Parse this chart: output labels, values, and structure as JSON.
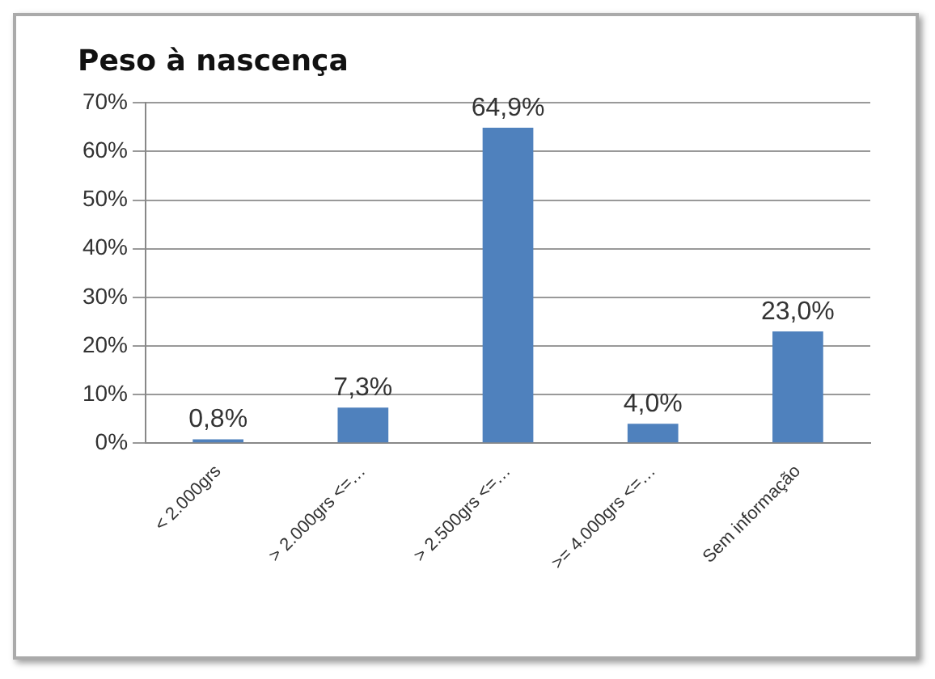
{
  "chart_data": {
    "type": "bar",
    "title": "Peso à nascença",
    "categories": [
      "< 2.000grs",
      "> 2.000grs <=…",
      "> 2.500grs <=…",
      ">= 4.000grs <=…",
      "Sem informação"
    ],
    "values": [
      0.8,
      7.3,
      64.9,
      4.0,
      23.0
    ],
    "value_labels": [
      "0,8%",
      "7,3%",
      "64,9%",
      "4,0%",
      "23,0%"
    ],
    "color": "#4f81bd",
    "ylim": [
      0,
      70
    ],
    "yticks": [
      {
        "value": 0,
        "label": "0%"
      },
      {
        "value": 10,
        "label": "10%"
      },
      {
        "value": 20,
        "label": "20%"
      },
      {
        "value": 30,
        "label": "30%"
      },
      {
        "value": 40,
        "label": "40%"
      },
      {
        "value": 50,
        "label": "50%"
      },
      {
        "value": 60,
        "label": "60%"
      },
      {
        "value": 70,
        "label": "70%"
      }
    ],
    "grid": "y",
    "legend": false
  }
}
